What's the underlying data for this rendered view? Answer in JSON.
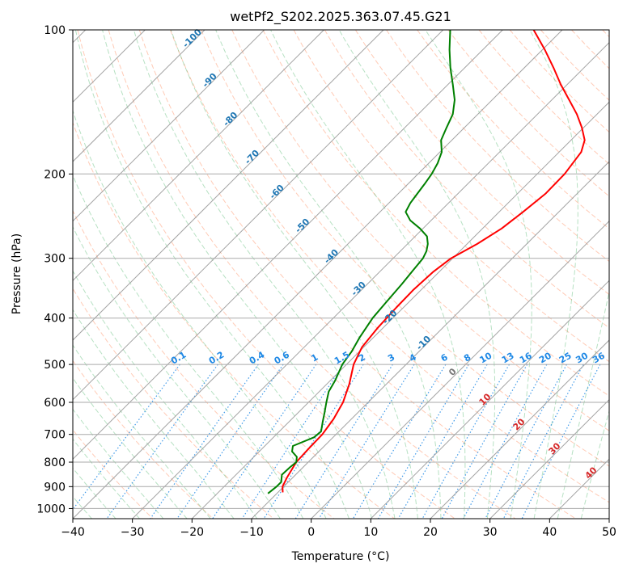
{
  "chart_data": {
    "type": "line",
    "title": "wetPf2_S202.2025.363.07.45.G21",
    "xlabel": "Temperature (°C)",
    "ylabel": "Pressure (hPa)",
    "xlim": [
      -40,
      50
    ],
    "ylim": [
      1050,
      100
    ],
    "yscale": "log",
    "x_ticks": [
      "−40",
      "−30",
      "−20",
      "−10",
      "0",
      "10",
      "20",
      "30",
      "40",
      "50"
    ],
    "y_ticks": [
      "100",
      "200",
      "300",
      "400",
      "500",
      "600",
      "700",
      "800",
      "900",
      "1000"
    ],
    "isotherm_labels": [
      "-100",
      "-90",
      "-80",
      "-70",
      "-60",
      "-50",
      "-40",
      "-30",
      "-20",
      "-10",
      "0",
      "10",
      "20",
      "30",
      "40"
    ],
    "mixing_ratio_labels": [
      "0.1",
      "0.2",
      "0.4",
      "0.6",
      "1",
      "1.5",
      "2",
      "3",
      "4",
      "6",
      "8",
      "10",
      "13",
      "16",
      "20",
      "25",
      "30",
      "36"
    ],
    "series": [
      {
        "color": "#ff0000",
        "pressure": [
          925,
          900,
          860,
          800,
          750,
          700,
          650,
          600,
          550,
          500,
          460,
          420,
          380,
          350,
          320,
          300,
          280,
          260,
          240,
          220,
          200,
          180,
          170,
          160,
          150,
          140,
          130,
          120,
          110,
          100
        ],
        "temperature": [
          -9.2,
          -10.2,
          -11,
          -12,
          -12.2,
          -12.3,
          -13,
          -14.2,
          -16.2,
          -18.8,
          -20.3,
          -20.9,
          -21.2,
          -21.3,
          -21.0,
          -20.3,
          -18.3,
          -16.8,
          -16.0,
          -15.3,
          -15.4,
          -16.3,
          -17.7,
          -20.3,
          -23.4,
          -27.1,
          -31.1,
          -35.1,
          -39.6,
          -44.8
        ]
      },
      {
        "color": "#008000",
        "pressure": [
          930,
          900,
          880,
          850,
          820,
          800,
          780,
          760,
          740,
          710,
          690,
          660,
          630,
          600,
          570,
          540,
          500,
          470,
          440,
          400,
          370,
          340,
          320,
          300,
          290,
          280,
          270,
          260,
          250,
          240,
          230,
          220,
          210,
          200,
          190,
          180,
          170,
          160,
          150,
          140,
          130,
          120,
          110,
          100
        ],
        "temperature": [
          -11.5,
          -11.2,
          -11.2,
          -12.3,
          -12.2,
          -12,
          -12.8,
          -14.5,
          -15.3,
          -13.2,
          -13,
          -14.3,
          -15.6,
          -17,
          -18.4,
          -19.2,
          -20.7,
          -21.3,
          -22.3,
          -23.4,
          -23.8,
          -24.2,
          -24.6,
          -25.0,
          -25.6,
          -26.6,
          -28.0,
          -30.5,
          -33.5,
          -35.7,
          -36.4,
          -36.8,
          -37.2,
          -37.7,
          -38.5,
          -39.7,
          -41.8,
          -43.0,
          -44.2,
          -46.3,
          -49.2,
          -52.4,
          -55.6,
          -58.8
        ]
      }
    ]
  }
}
